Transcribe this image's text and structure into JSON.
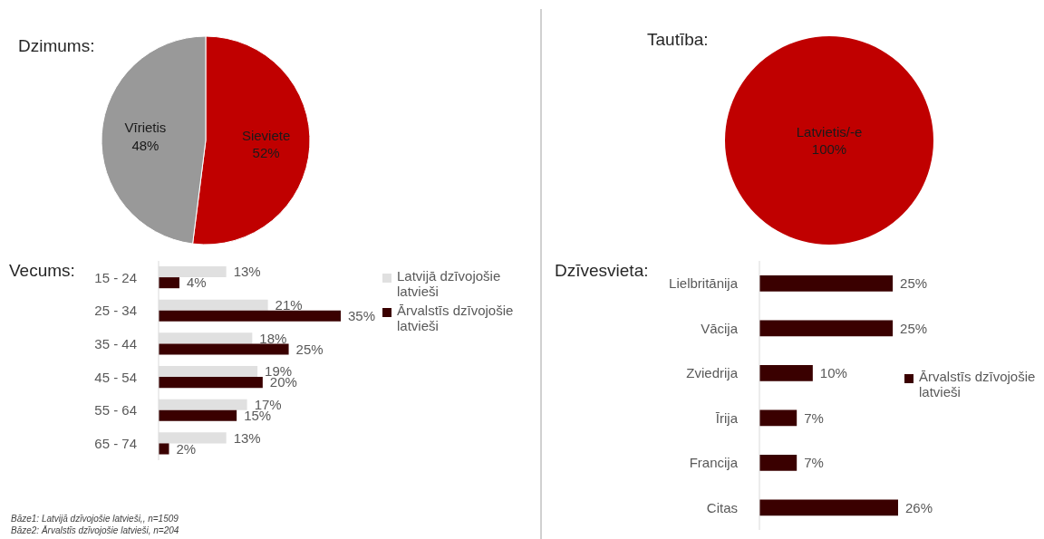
{
  "chart_data": [
    {
      "type": "pie",
      "title": "Dzimums:",
      "categories": [
        "Sieviete",
        "Vīrietis"
      ],
      "values": [
        52,
        48
      ],
      "colors": [
        "#c00000",
        "#999999"
      ],
      "value_labels": [
        "52%",
        "48%"
      ]
    },
    {
      "type": "pie",
      "title": "Tautība:",
      "categories": [
        "Latvietis/-e"
      ],
      "values": [
        100
      ],
      "colors": [
        "#c00000"
      ],
      "value_labels": [
        "100%"
      ]
    },
    {
      "type": "bar",
      "orientation": "horizontal",
      "title": "Vecums:",
      "categories": [
        "15 - 24",
        "25 - 34",
        "35 - 44",
        "45 - 54",
        "55 - 64",
        "65 - 74"
      ],
      "legend": "top right",
      "series": [
        {
          "name": "Latvijā dzīvojošie latvieši",
          "color": "#e0e0e0",
          "values": [
            13,
            21,
            18,
            19,
            17,
            13
          ],
          "value_labels": [
            "13%",
            "21%",
            "18%",
            "19%",
            "17%",
            "13%"
          ]
        },
        {
          "name": "Ārvalstīs dzīvojošie latvieši",
          "color": "#3a0000",
          "values": [
            4,
            35,
            25,
            20,
            15,
            2
          ],
          "value_labels": [
            "4%",
            "35%",
            "25%",
            "20%",
            "15%",
            "2%"
          ]
        }
      ],
      "annotations": [
        "Bāze1: Latvijā dzīvojošie latvieši,, n=1509",
        "Bāze2: Ārvalstīs dzīvojošie latvieši, n=204"
      ]
    },
    {
      "type": "bar",
      "orientation": "horizontal",
      "title": "Dzīvesvieta:",
      "categories": [
        "Lielbritānija",
        "Vācija",
        "Zviedrija",
        "Īrija",
        "Francija",
        "Citas"
      ],
      "legend": "right",
      "series": [
        {
          "name": "Ārvalstīs dzīvojošie latvieši",
          "color": "#3a0000",
          "values": [
            25,
            25,
            10,
            7,
            7,
            26
          ],
          "value_labels": [
            "25%",
            "25%",
            "10%",
            "7%",
            "7%",
            "26%"
          ]
        }
      ]
    }
  ]
}
